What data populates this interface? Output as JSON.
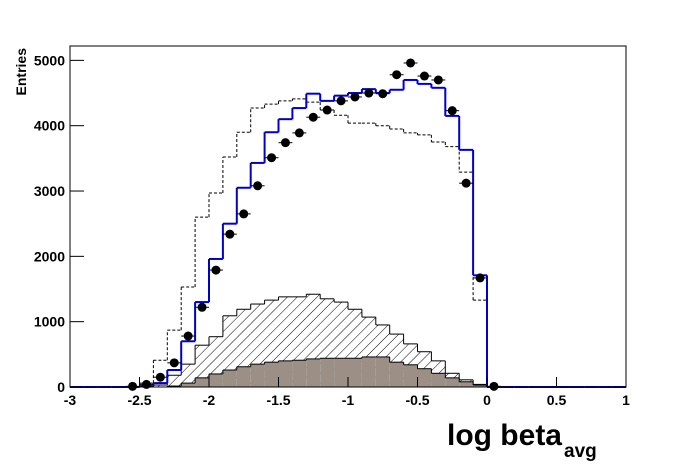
{
  "chart_data": {
    "type": "histogram",
    "ylabel": "Entries",
    "xlabel": "log beta",
    "xlabel_subscript": "avg",
    "xlim": [
      -3,
      1
    ],
    "ylim": [
      0,
      5220
    ],
    "xticks": [
      -3,
      -2.5,
      -2,
      -1.5,
      -1,
      -0.5,
      0,
      0.5,
      1
    ],
    "yticks": [
      0,
      1000,
      2000,
      3000,
      4000,
      5000
    ],
    "bins": [
      -3,
      -2.9,
      -2.8,
      -2.7,
      -2.6,
      -2.5,
      -2.4,
      -2.3,
      -2.2,
      -2.1,
      -2,
      -1.9,
      -1.8,
      -1.7,
      -1.6,
      -1.5,
      -1.4,
      -1.3,
      -1.2,
      -1.1,
      -1,
      -0.9,
      -0.8,
      -0.7,
      -0.6,
      -0.5,
      -0.4,
      -0.3,
      -0.2,
      -0.1,
      0,
      0.1,
      0.2,
      0.3,
      0.4,
      0.5,
      0.6,
      0.7,
      0.8,
      0.9,
      1
    ],
    "series": [
      {
        "style": "hatch",
        "color": "#000000",
        "values": [
          0,
          0,
          0,
          0,
          0,
          0,
          30,
          180,
          350,
          640,
          770,
          1090,
          1190,
          1270,
          1330,
          1380,
          1380,
          1420,
          1350,
          1300,
          1190,
          1070,
          950,
          810,
          660,
          540,
          400,
          210,
          110,
          40,
          0,
          0,
          0,
          0,
          0,
          0,
          0,
          0,
          0,
          0
        ]
      },
      {
        "style": "fill",
        "color": "#9b8f86",
        "values": [
          0,
          0,
          0,
          0,
          0,
          0,
          0,
          15,
          60,
          140,
          200,
          260,
          310,
          350,
          380,
          400,
          410,
          430,
          440,
          440,
          440,
          460,
          460,
          380,
          340,
          280,
          210,
          140,
          80,
          30,
          0,
          0,
          0,
          0,
          0,
          0,
          0,
          0,
          0,
          0
        ]
      },
      {
        "style": "dashed",
        "color": "#000000",
        "values": [
          0,
          0,
          0,
          0,
          0,
          60,
          410,
          870,
          1530,
          2600,
          2970,
          3520,
          3900,
          4270,
          4330,
          4380,
          4410,
          4360,
          4240,
          4160,
          4040,
          4040,
          4000,
          3950,
          3890,
          3860,
          3750,
          3680,
          3290,
          1330,
          0,
          0,
          0,
          0,
          0,
          0,
          0,
          0,
          0,
          0
        ]
      },
      {
        "style": "step",
        "color": "#0000cc",
        "values": [
          0,
          0,
          0,
          0,
          0,
          15,
          60,
          260,
          700,
          1300,
          1960,
          2500,
          3050,
          3430,
          3900,
          4100,
          4270,
          4490,
          4380,
          4460,
          4500,
          4560,
          4500,
          4550,
          4700,
          4640,
          4580,
          4150,
          3630,
          1710,
          0,
          0,
          0,
          0,
          0,
          0,
          0,
          0,
          0,
          0
        ]
      },
      {
        "style": "points",
        "color": "#000000",
        "values": [
          null,
          null,
          null,
          null,
          10,
          40,
          150,
          370,
          780,
          1220,
          1790,
          2340,
          2650,
          3080,
          3510,
          3740,
          3890,
          4130,
          4240,
          4380,
          4440,
          4500,
          4490,
          4780,
          4960,
          4760,
          4700,
          4230,
          3120,
          1670,
          10,
          null,
          null,
          null,
          null,
          null,
          null,
          null,
          null,
          null
        ]
      }
    ]
  }
}
